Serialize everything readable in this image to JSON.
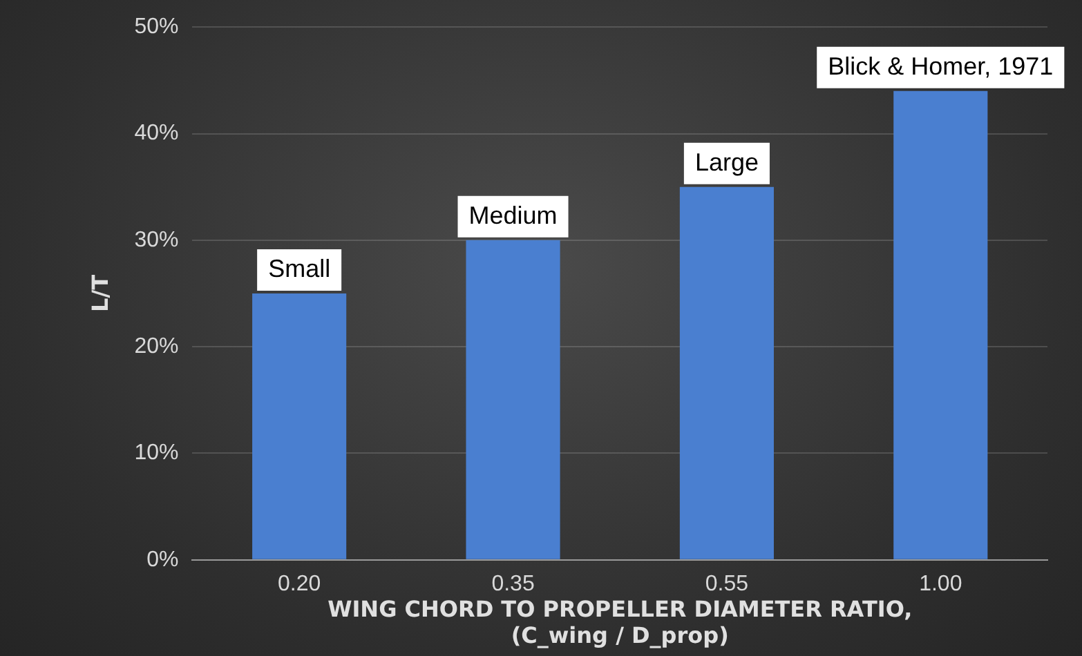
{
  "chart_data": {
    "type": "bar",
    "categories": [
      "0.20",
      "0.35",
      "0.55",
      "1.00"
    ],
    "values": [
      25,
      30,
      35,
      44
    ],
    "color": "#4a7fd0",
    "ylabel": "L/T",
    "xlabel": "WING CHORD TO PROPELLER DIAMETER RATIO,\n(C_wing / D_prop)",
    "ylim": [
      0,
      50
    ],
    "yticks": [
      {
        "value": 0,
        "label": "0%"
      },
      {
        "value": 10,
        "label": "10%"
      },
      {
        "value": 20,
        "label": "20%"
      },
      {
        "value": 30,
        "label": "30%"
      },
      {
        "value": 40,
        "label": "40%"
      },
      {
        "value": 50,
        "label": "50%"
      }
    ],
    "grid": "y",
    "annotations": [
      {
        "text": "Small",
        "x": "0.20",
        "y": 25
      },
      {
        "text": "Medium",
        "x": "0.35",
        "y": 30
      },
      {
        "text": "Large",
        "x": "0.55",
        "y": 35
      },
      {
        "text": "Blick & Homer, 1971",
        "x": "1.00",
        "y": 44
      }
    ]
  }
}
